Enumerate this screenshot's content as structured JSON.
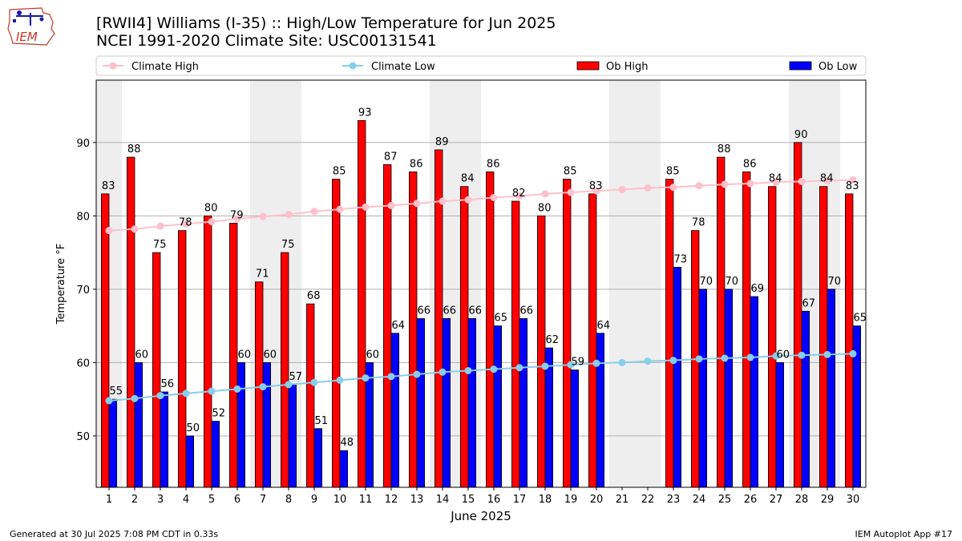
{
  "header": {
    "logo_text": "IEM",
    "title": "[RWII4] Williams (I-35) :: High/Low Temperature for Jun 2025",
    "subtitle": "NCEI 1991-2020 Climate Site: USC00131541"
  },
  "footer": {
    "generated": "Generated at 30 Jul 2025 7:08 PM CDT in 0.33s",
    "app": "IEM Autoplot App #17"
  },
  "chart_data": {
    "type": "bar",
    "xlabel": "June 2025",
    "ylabel": "Temperature °F",
    "ylim": [
      43,
      98.5
    ],
    "yticks": [
      50,
      60,
      70,
      80,
      90
    ],
    "grid": "horizontal",
    "legend_position": "top",
    "weekend_shading": [
      1,
      7,
      8,
      14,
      15,
      21,
      22,
      28,
      29
    ],
    "categories": [
      1,
      2,
      3,
      4,
      5,
      6,
      7,
      8,
      9,
      10,
      11,
      12,
      13,
      14,
      15,
      16,
      17,
      18,
      19,
      20,
      21,
      22,
      23,
      24,
      25,
      26,
      27,
      28,
      29,
      30
    ],
    "series": [
      {
        "name": "Climate High",
        "kind": "line",
        "color": "#ffc0cb",
        "values": [
          78.0,
          78.2,
          78.6,
          78.9,
          79.2,
          79.6,
          79.9,
          80.2,
          80.6,
          80.9,
          81.2,
          81.4,
          81.7,
          82.0,
          82.2,
          82.5,
          82.7,
          83.0,
          83.2,
          83.4,
          83.6,
          83.8,
          83.9,
          84.1,
          84.3,
          84.4,
          84.6,
          84.7,
          84.8,
          84.9
        ]
      },
      {
        "name": "Climate Low",
        "kind": "line",
        "color": "#87ceeb",
        "values": [
          54.8,
          55.1,
          55.5,
          55.8,
          56.1,
          56.4,
          56.7,
          57.0,
          57.3,
          57.6,
          57.9,
          58.1,
          58.4,
          58.7,
          58.9,
          59.1,
          59.3,
          59.5,
          59.7,
          59.9,
          60.0,
          60.2,
          60.3,
          60.5,
          60.6,
          60.7,
          60.9,
          61.0,
          61.1,
          61.2
        ]
      },
      {
        "name": "Ob High",
        "kind": "bar",
        "color": "#ff0000",
        "values": [
          83,
          88,
          75,
          78,
          80,
          79,
          71,
          75,
          68,
          85,
          93,
          87,
          86,
          89,
          84,
          86,
          82,
          80,
          85,
          83,
          null,
          null,
          85,
          78,
          88,
          86,
          84,
          90,
          84,
          83
        ]
      },
      {
        "name": "Ob Low",
        "kind": "bar",
        "color": "#0000ff",
        "values": [
          55,
          60,
          56,
          50,
          52,
          60,
          60,
          57,
          51,
          48,
          60,
          64,
          66,
          66,
          66,
          65,
          66,
          62,
          59,
          64,
          null,
          null,
          73,
          70,
          70,
          69,
          60,
          67,
          70,
          65
        ]
      }
    ]
  }
}
